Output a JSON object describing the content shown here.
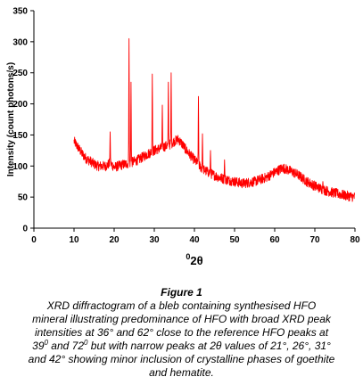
{
  "chart_data": {
    "type": "line",
    "xlabel_sup": "0",
    "xlabel_main": "2θ",
    "ylabel": "Intensity (count photons/s)",
    "xlim": [
      0,
      80
    ],
    "ylim": [
      0,
      350
    ],
    "xticks": [
      0,
      10,
      20,
      30,
      40,
      50,
      60,
      70,
      80
    ],
    "yticks": [
      0,
      50,
      100,
      150,
      200,
      250,
      300,
      350
    ],
    "grid": false,
    "series_color": "#ff0000",
    "profile_x": [
      10,
      11,
      12,
      13,
      14,
      15,
      16,
      17,
      18,
      19,
      20,
      21,
      22,
      24,
      26,
      28,
      30,
      32,
      34,
      35,
      36,
      37,
      38,
      40,
      42,
      44,
      46,
      48,
      50,
      52,
      55,
      58,
      60,
      62,
      64,
      66,
      68,
      70,
      72,
      74,
      76,
      78,
      80
    ],
    "profile_y": [
      140,
      130,
      120,
      112,
      108,
      103,
      100,
      100,
      100,
      105,
      98,
      100,
      102,
      105,
      110,
      118,
      125,
      130,
      135,
      140,
      143,
      135,
      125,
      110,
      95,
      88,
      82,
      78,
      75,
      72,
      75,
      82,
      90,
      97,
      92,
      85,
      75,
      68,
      62,
      58,
      55,
      52,
      50
    ],
    "peaks": [
      {
        "x": 19.0,
        "y": 155
      },
      {
        "x": 23.7,
        "y": 305
      },
      {
        "x": 24.2,
        "y": 235
      },
      {
        "x": 29.5,
        "y": 248
      },
      {
        "x": 32.0,
        "y": 198
      },
      {
        "x": 33.5,
        "y": 235
      },
      {
        "x": 34.2,
        "y": 250
      },
      {
        "x": 41.0,
        "y": 212
      },
      {
        "x": 42.0,
        "y": 152
      },
      {
        "x": 44.0,
        "y": 125
      },
      {
        "x": 47.5,
        "y": 110
      },
      {
        "x": 72.0,
        "y": 75
      }
    ]
  },
  "caption": {
    "title": "Figure 1",
    "l1": "XRD diffractogram of a bleb containing synthesised HFO",
    "l2": "mineral illustrating predominance of HFO with broad XRD peak",
    "l3": "intensities at 36° and 62° close to the reference HFO peaks at",
    "l4a": "39",
    "l4sup1": "0",
    "l4b": " and 72",
    "l4sup2": "0",
    "l4c": " but with narrow peaks at 2θ values of 21°, 26°, 31°",
    "l5": "and 42° showing minor inclusion of crystalline phases of goethite",
    "l6": "and hematite."
  }
}
